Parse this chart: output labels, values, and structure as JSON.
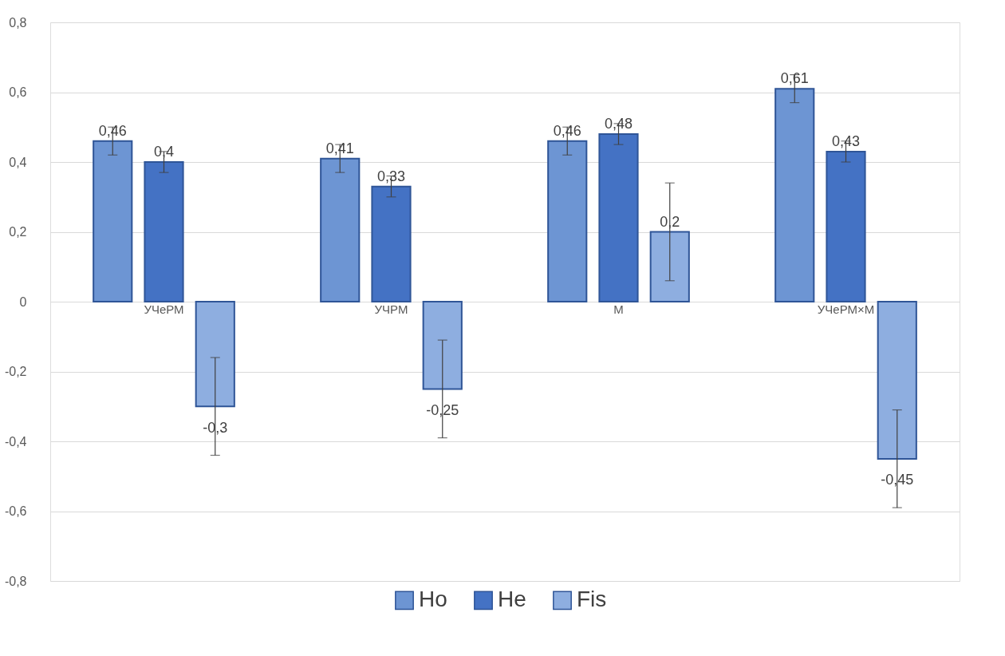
{
  "chart_data": {
    "type": "bar",
    "categories": [
      "УЧеРМ",
      "УЧРМ",
      "М",
      "УЧеРМ×М"
    ],
    "series": [
      {
        "name": "Ho",
        "color": "#6d95d3",
        "values": [
          0.46,
          0.41,
          0.46,
          0.61
        ],
        "errors": [
          0.04,
          0.04,
          0.04,
          0.04
        ],
        "value_labels": [
          "0,46",
          "0,41",
          "0,46",
          "0,61"
        ]
      },
      {
        "name": "He",
        "color": "#4472c4",
        "values": [
          0.4,
          0.33,
          0.48,
          0.43
        ],
        "errors": [
          0.03,
          0.03,
          0.03,
          0.03
        ],
        "value_labels": [
          "0,4",
          "0,33",
          "0,48",
          "0,43"
        ]
      },
      {
        "name": "Fis",
        "color": "#8eaee0",
        "values": [
          -0.3,
          -0.25,
          0.2,
          -0.45
        ],
        "errors": [
          0.14,
          0.14,
          0.14,
          0.14
        ],
        "value_labels": [
          "-0,3",
          "-0,25",
          "0,2",
          "-0,45"
        ]
      }
    ],
    "ylim": [
      -0.8,
      0.8
    ],
    "yticks": [
      {
        "value": -0.8,
        "label": "-0,8"
      },
      {
        "value": -0.6,
        "label": "-0,6"
      },
      {
        "value": -0.4,
        "label": "-0,4"
      },
      {
        "value": -0.2,
        "label": "-0,2"
      },
      0,
      {
        "value": 0.2,
        "label": "0,2"
      },
      {
        "value": 0.4,
        "label": "0,4"
      },
      {
        "value": 0.6,
        "label": "0,6"
      },
      {
        "value": 0.8,
        "label": "0,8"
      }
    ],
    "grid": "y",
    "legend": "bottom"
  }
}
